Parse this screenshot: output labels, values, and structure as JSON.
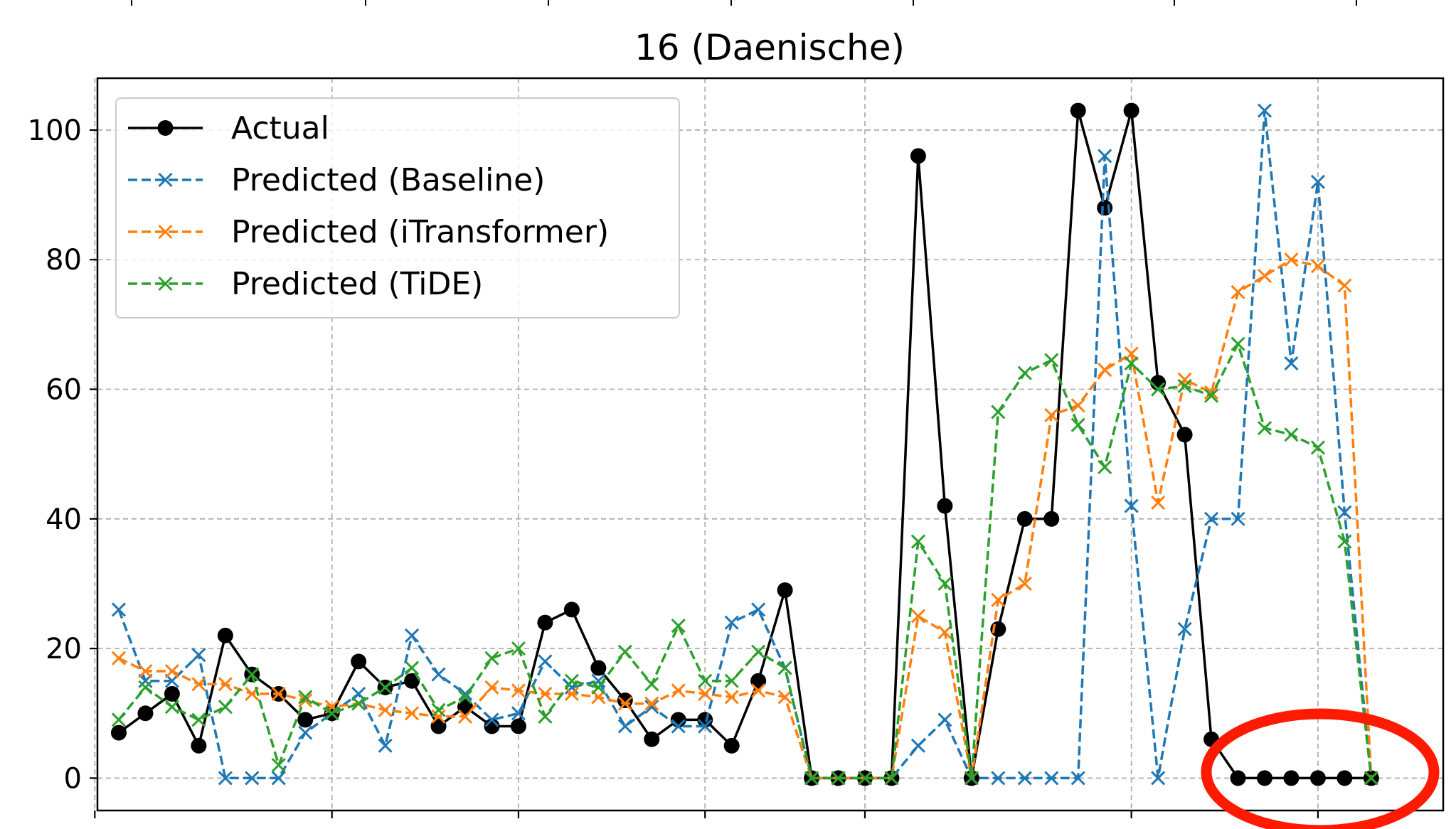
{
  "chart_data": {
    "type": "line",
    "title": "16 (Daenische)",
    "xlabel": "",
    "ylabel": "",
    "x": [
      0,
      1,
      2,
      3,
      4,
      5,
      6,
      7,
      8,
      9,
      10,
      11,
      12,
      13,
      14,
      15,
      16,
      17,
      18,
      19,
      20,
      21,
      22,
      23,
      24,
      25,
      26,
      27,
      28,
      29,
      30,
      31,
      32,
      33,
      34,
      35,
      36,
      37,
      38,
      39,
      40,
      41,
      42,
      43,
      44,
      45,
      46,
      47
    ],
    "xlim": [
      -0.8,
      49.7
    ],
    "ylim": [
      -5,
      108
    ],
    "yticks": [
      0,
      20,
      40,
      60,
      80,
      100
    ],
    "ytick_labels": [
      "0",
      "20",
      "40",
      "60",
      "80",
      "100"
    ],
    "xticks": [
      -0.9,
      8,
      15,
      22,
      28,
      38,
      45
    ],
    "grid": true,
    "legend_position": "upper-left",
    "series": [
      {
        "name": "Actual",
        "color": "#000000",
        "style": "solid",
        "marker": "circle",
        "values": [
          7,
          10,
          13,
          5,
          22,
          16,
          13,
          9,
          10,
          18,
          14,
          15,
          8,
          11,
          8,
          8,
          24,
          26,
          17,
          12,
          6,
          9,
          9,
          5,
          15,
          29,
          0,
          0,
          0,
          0,
          96,
          42,
          0,
          23,
          40,
          40,
          103,
          88,
          103,
          61,
          53,
          6,
          0,
          0,
          0,
          0,
          0,
          0
        ]
      },
      {
        "name": "Predicted (Baseline)",
        "color": "#1f77b4",
        "style": "dashed",
        "marker": "x",
        "values": [
          26,
          15,
          15,
          19,
          0,
          0,
          0,
          7,
          10,
          13,
          5,
          22,
          16,
          13,
          9,
          10,
          18,
          14,
          15,
          8,
          11,
          8,
          8,
          24,
          26,
          17,
          0,
          0,
          0,
          0,
          5,
          9,
          0,
          0,
          0,
          0,
          0,
          96,
          42,
          0,
          23,
          40,
          40,
          103,
          64,
          92,
          41,
          0
        ]
      },
      {
        "name": "Predicted (iTransformer)",
        "color": "#ff7f0e",
        "style": "dashed",
        "marker": "x",
        "values": [
          18.5,
          16.5,
          16.5,
          14.5,
          14.5,
          13,
          13,
          12,
          11,
          11.5,
          10.5,
          10,
          9.5,
          9.5,
          14,
          13.5,
          13,
          13,
          12.5,
          11.5,
          11.5,
          13.5,
          13,
          12.5,
          13.5,
          12.5,
          0,
          0,
          0,
          0,
          25,
          22.5,
          0,
          27.5,
          30,
          56,
          57.5,
          63,
          65.5,
          42.5,
          61.5,
          59.5,
          75,
          77.5,
          80,
          79,
          76,
          0
        ]
      },
      {
        "name": "Predicted (TiDE)",
        "color": "#2ca02c",
        "style": "dashed",
        "marker": "x",
        "values": [
          9,
          14,
          11,
          9,
          11,
          16,
          2,
          12.5,
          10,
          11.5,
          14,
          17,
          10.5,
          12.5,
          18.5,
          20,
          9.5,
          15,
          14,
          19.5,
          14.5,
          23.5,
          15,
          15,
          19.5,
          17,
          0,
          0,
          0,
          0,
          36.5,
          30,
          0,
          56.5,
          62.5,
          64.5,
          54.5,
          48,
          64,
          60,
          60.5,
          59,
          67,
          54,
          53,
          51,
          36.5,
          0
        ]
      }
    ]
  },
  "legend": {
    "items": [
      "Actual",
      "Predicted (Baseline)",
      "Predicted (iTransformer)",
      "Predicted (TiDE)"
    ]
  },
  "annotation": {
    "shape": "ellipse",
    "color": "#ff1a00"
  }
}
